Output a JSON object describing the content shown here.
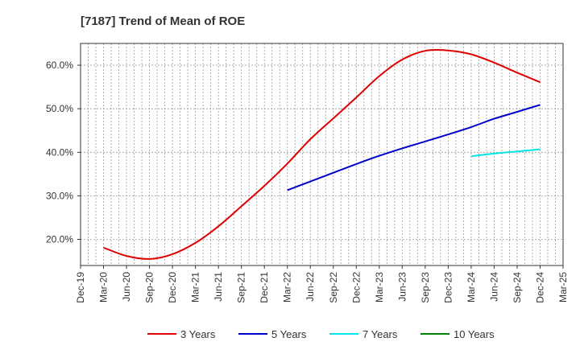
{
  "chart_data": {
    "type": "line",
    "title": "[7187]  Trend of Mean of ROE",
    "xlabel": "",
    "ylabel": "",
    "x_ticks": [
      "Dec-19",
      "Mar-20",
      "Jun-20",
      "Sep-20",
      "Dec-20",
      "Mar-21",
      "Jun-21",
      "Sep-21",
      "Dec-21",
      "Mar-22",
      "Jun-22",
      "Sep-22",
      "Dec-22",
      "Mar-23",
      "Jun-23",
      "Sep-23",
      "Dec-23",
      "Mar-24",
      "Jun-24",
      "Sep-24",
      "Dec-24",
      "Mar-25"
    ],
    "y_ticks": [
      20,
      30,
      40,
      50,
      60
    ],
    "y_tick_labels": [
      "20.0%",
      "30.0%",
      "40.0%",
      "50.0%",
      "60.0%"
    ],
    "ylim": [
      14,
      65
    ],
    "grid": true,
    "legend_position": "bottom",
    "series": [
      {
        "name": "3 Years",
        "color": "#e00000",
        "points": [
          [
            "Mar-20",
            18.1
          ],
          [
            "Jun-20",
            16.2
          ],
          [
            "Sep-20",
            15.5
          ],
          [
            "Dec-20",
            16.6
          ],
          [
            "Mar-21",
            19.2
          ],
          [
            "Jun-21",
            23.0
          ],
          [
            "Sep-21",
            27.6
          ],
          [
            "Dec-21",
            32.3
          ],
          [
            "Mar-22",
            37.4
          ],
          [
            "Jun-22",
            43.0
          ],
          [
            "Sep-22",
            47.8
          ],
          [
            "Dec-22",
            52.6
          ],
          [
            "Mar-23",
            57.5
          ],
          [
            "Jun-23",
            61.3
          ],
          [
            "Sep-23",
            63.3
          ],
          [
            "Dec-23",
            63.4
          ],
          [
            "Mar-24",
            62.5
          ],
          [
            "Jun-24",
            60.6
          ],
          [
            "Sep-24",
            58.3
          ],
          [
            "Dec-24",
            56.1
          ]
        ]
      },
      {
        "name": "5 Years",
        "color": "#0000cc",
        "points": [
          [
            "Mar-22",
            31.3
          ],
          [
            "Jun-22",
            33.3
          ],
          [
            "Sep-22",
            35.3
          ],
          [
            "Dec-22",
            37.3
          ],
          [
            "Mar-23",
            39.2
          ],
          [
            "Jun-23",
            40.9
          ],
          [
            "Sep-23",
            42.5
          ],
          [
            "Dec-23",
            44.1
          ],
          [
            "Mar-24",
            45.8
          ],
          [
            "Jun-24",
            47.7
          ],
          [
            "Sep-24",
            49.3
          ],
          [
            "Dec-24",
            50.9
          ]
        ]
      },
      {
        "name": "7 Years",
        "color": "#00e5e5",
        "points": [
          [
            "Mar-24",
            39.1
          ],
          [
            "Jun-24",
            39.7
          ],
          [
            "Sep-24",
            40.2
          ],
          [
            "Dec-24",
            40.7
          ]
        ]
      },
      {
        "name": "10 Years",
        "color": "#008000",
        "points": []
      }
    ]
  }
}
